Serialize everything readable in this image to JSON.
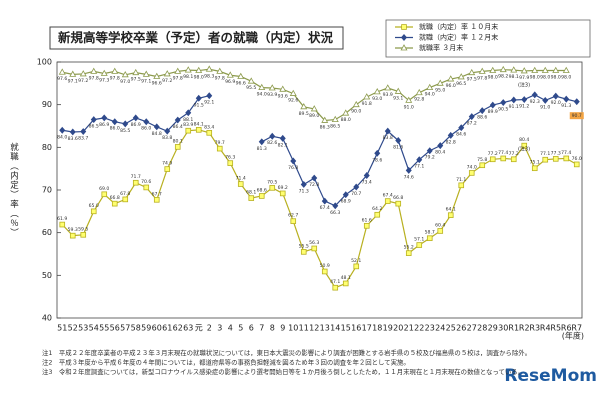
{
  "chart_data": {
    "type": "line",
    "title": "新規高等学校卒業（予定）者の就職（内定）状況",
    "y_label": "就職（内定）率（％）",
    "x_label": "(年度)",
    "categories": [
      "51",
      "52",
      "53",
      "54",
      "55",
      "56",
      "57",
      "58",
      "59",
      "60",
      "61",
      "62",
      "63",
      "元",
      "2",
      "3",
      "4",
      "5",
      "6",
      "7",
      "8",
      "9",
      "10",
      "11",
      "12",
      "13",
      "14",
      "15",
      "16",
      "17",
      "18",
      "19",
      "20",
      "21",
      "22",
      "23",
      "24",
      "25",
      "26",
      "27",
      "28",
      "29",
      "30",
      "R1",
      "R2",
      "R3",
      "R4",
      "R5",
      "R6",
      "R7"
    ],
    "ylim": [
      40,
      100
    ],
    "yticks": [
      40,
      50,
      60,
      70,
      80,
      90,
      100
    ],
    "grid": false,
    "legend": "top-right",
    "series": [
      {
        "name": "就職（内定）率 １０月末",
        "color": "#b8b020",
        "marker": "square",
        "marker_fill": "#ffff70",
        "values": [
          61.9,
          59.3,
          59.5,
          65.0,
          69.0,
          66.8,
          67.8,
          71.7,
          70.6,
          67.7,
          74.9,
          80.1,
          83.9,
          84.1,
          83.4,
          79.7,
          76.3,
          71.4,
          68.1,
          68.6,
          70.5,
          69.2,
          62.7,
          55.5,
          56.3,
          50.9,
          47.1,
          48.1,
          52.1,
          61.6,
          64.2,
          67.4,
          66.8,
          55.2,
          57.1,
          58.7,
          60.4,
          64.1,
          71.1,
          74.0,
          75.8,
          77.2,
          77.4,
          77.2,
          80.4,
          75.1,
          77.1,
          77.3,
          77.4,
          76.0
        ],
        "value_labels": [
          "61.9",
          "59.3",
          "59.5",
          "65.0",
          "69.0",
          "66.8",
          "67.8",
          "71.7",
          "70.6",
          "67.7",
          "74.9",
          "80.1",
          "83.9",
          "84.1",
          "83.4",
          "79.7",
          "76.3",
          "71.4",
          "68.1",
          "68.6",
          "70.5",
          "69.2",
          "62.7",
          "55.5",
          "56.3",
          "50.9",
          "47.1",
          "48.1",
          "52.1",
          "61.6",
          "64.2",
          "67.4",
          "66.8",
          "55.2",
          "57.1",
          "58.7",
          "60.4",
          "64.1",
          "71.1",
          "74.0",
          "75.8",
          "77.2",
          "77.4",
          "77.2",
          "80.4",
          "75.1",
          "77.1",
          "77.3",
          "77.4",
          "76.0"
        ]
      },
      {
        "name": "就職（内定）率 １２月末",
        "color": "#2f4a8c",
        "marker": "diamond",
        "marker_fill": "#2f4a8c",
        "label_highlight_color": "#f2a444",
        "values": [
          84.0,
          83.6,
          83.7,
          86.5,
          86.9,
          86.0,
          85.5,
          86.9,
          86.0,
          84.8,
          83.8,
          86.4,
          88.1,
          91.5,
          92.1,
          null,
          null,
          null,
          null,
          81.3,
          82.6,
          82.1,
          76.8,
          71.3,
          72.8,
          67.4,
          66.3,
          68.9,
          70.7,
          73.4,
          78.6,
          83.8,
          81.6,
          74.6,
          77.1,
          79.2,
          80.4,
          82.8,
          84.6,
          87.2,
          88.6,
          89.9,
          90.5,
          91.1,
          91.2,
          92.3,
          91.0,
          92.0,
          91.3,
          90.7
        ],
        "value_labels": [
          "84.0",
          "83.6",
          "83.7",
          "86.5",
          "86.9",
          "86.0",
          "85.5",
          "86.9",
          "86.0",
          "84.8",
          "83.8",
          "86.4",
          "88.1",
          "91.5",
          "92.1",
          null,
          null,
          null,
          null,
          "81.3",
          "82.6",
          "82.1",
          "76.8",
          "71.3",
          "72.8",
          "67.4",
          "66.3",
          "68.9",
          "70.7",
          "73.4",
          "78.6",
          "83.8",
          "81.6",
          "74.6",
          "77.1",
          "79.2",
          "80.4",
          "82.8",
          "84.6",
          "87.2",
          "88.6",
          "89.9",
          "90.5",
          "91.1",
          "91.2",
          "92.3",
          "91.0",
          "92.0",
          "91.3",
          "90.7"
        ]
      },
      {
        "name": "就職率 ３月末",
        "color": "#8c9a4c",
        "marker": "triangle",
        "marker_fill": "#ffffff",
        "values": [
          97.6,
          97.1,
          97.2,
          97.8,
          97.3,
          97.8,
          97.0,
          97.5,
          97.1,
          96.6,
          97.2,
          97.8,
          98.1,
          98.0,
          98.3,
          97.8,
          96.9,
          96.6,
          95.5,
          94.0,
          93.9,
          93.6,
          92.6,
          89.5,
          89.0,
          86.3,
          86.5,
          88.0,
          90.0,
          91.8,
          93.0,
          93.9,
          93.1,
          91.0,
          92.8,
          94.0,
          95.0,
          96.0,
          96.5,
          97.5,
          97.8,
          98.0,
          98.2,
          98.1,
          97.9,
          98.0,
          98.0,
          98.0,
          98.0,
          null
        ],
        "value_labels": [
          "97.6",
          "97.1",
          "97.2",
          "97.8",
          "97.3",
          "97.8",
          "97.0",
          "97.5",
          "97.1",
          "96.6",
          "97.2",
          "97.8",
          "98.1",
          "98.0",
          "98.3",
          "97.8",
          "96.9",
          "96.6",
          "95.5",
          "94.0",
          "93.9",
          "93.6",
          "92.6",
          "89.5",
          "89.0",
          "86.3",
          "86.5",
          "88.0",
          "90.0",
          "91.8",
          "93.0",
          "93.9",
          "93.1",
          "91.0",
          "92.8",
          "94.0",
          "95.0",
          "96.0",
          "96.5",
          "97.5",
          "97.8",
          "98.0",
          "98.2",
          "98.1",
          "97.9",
          "98.0",
          "98.0",
          "98.0",
          "98.0",
          null
        ]
      }
    ],
    "annotations": [
      "(注3)",
      "(注3)"
    ],
    "notes": [
      "注1　平成２２年度卒業者の平成２３年３月末現在の就職状況については，東日本大震災の影響により調査が困難とする岩手県の５校及び福島県の５校は，調査から除外。",
      "注2　平成３年度から平成６年度の４年間については，都道府県等の事務負担軽減を図るため年３回の調査を年２回として実施。",
      "注3　令和２年度調査については，新型コロナウイルス感染症の影響により選考開始日等を１か月後ろ倒しとしたため，１１月末現在と１月末現在の数値となっている。"
    ],
    "logo": "ReseMom"
  }
}
